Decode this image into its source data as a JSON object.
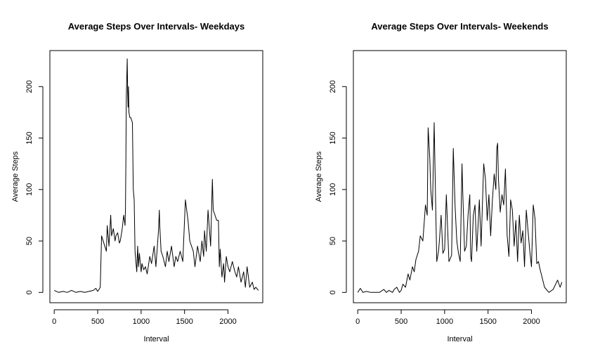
{
  "chart_data": [
    {
      "type": "line",
      "title": "Average Steps Over Intervals- Weekdays",
      "xlabel": "Interval",
      "ylabel": "Average Steps",
      "xlim": [
        -50,
        2400
      ],
      "ylim": [
        -10,
        235
      ],
      "xticks": [
        0,
        500,
        1000,
        1500,
        2000
      ],
      "yticks": [
        0,
        50,
        100,
        150,
        200
      ],
      "series": [
        {
          "x": [
            0,
            50,
            100,
            150,
            200,
            250,
            300,
            350,
            400,
            450,
            480,
            500,
            515,
            530,
            545,
            600,
            610,
            630,
            650,
            660,
            680,
            700,
            710,
            730,
            750,
            760,
            780,
            800,
            815,
            820,
            825,
            830,
            835,
            840,
            845,
            850,
            855,
            860,
            870,
            880,
            900,
            910,
            920,
            930,
            940,
            950,
            960,
            970,
            980,
            1000,
            1010,
            1030,
            1050,
            1070,
            1100,
            1120,
            1150,
            1170,
            1200,
            1210,
            1215,
            1230,
            1250,
            1280,
            1300,
            1320,
            1350,
            1380,
            1400,
            1420,
            1450,
            1480,
            1510,
            1540,
            1550,
            1560,
            1600,
            1620,
            1650,
            1680,
            1700,
            1720,
            1730,
            1750,
            1770,
            1800,
            1820,
            1830,
            1850,
            1870,
            1890,
            1900,
            1910,
            1930,
            1950,
            1960,
            1980,
            2000,
            2020,
            2050,
            2080,
            2100,
            2120,
            2150,
            2180,
            2200,
            2220,
            2250,
            2280,
            2300,
            2320,
            2350
          ],
          "y": [
            2,
            0,
            1,
            0,
            2,
            0,
            1,
            0,
            1,
            2,
            4,
            1,
            3,
            5,
            55,
            40,
            65,
            45,
            75,
            55,
            62,
            50,
            55,
            58,
            48,
            50,
            60,
            75,
            65,
            82,
            130,
            190,
            210,
            227,
            195,
            180,
            200,
            175,
            170,
            170,
            165,
            100,
            90,
            40,
            30,
            20,
            45,
            25,
            38,
            20,
            28,
            22,
            25,
            18,
            35,
            28,
            45,
            25,
            60,
            80,
            65,
            40,
            35,
            25,
            40,
            30,
            45,
            25,
            35,
            30,
            40,
            30,
            90,
            70,
            60,
            50,
            40,
            25,
            45,
            30,
            50,
            35,
            60,
            40,
            80,
            45,
            110,
            80,
            75,
            70,
            70,
            25,
            42,
            15,
            28,
            10,
            35,
            25,
            20,
            30,
            20,
            15,
            25,
            10,
            20,
            5,
            25,
            5,
            10,
            3,
            5,
            2
          ]
        }
      ]
    },
    {
      "type": "line",
      "title": "Average Steps Over Intervals- Weekends",
      "xlabel": "Interval",
      "ylabel": "Average Steps",
      "xlim": [
        -50,
        2400
      ],
      "ylim": [
        -10,
        235
      ],
      "xticks": [
        0,
        500,
        1000,
        1500,
        2000
      ],
      "yticks": [
        0,
        50,
        100,
        150,
        200
      ],
      "series": [
        {
          "x": [
            0,
            30,
            60,
            100,
            150,
            200,
            250,
            300,
            330,
            360,
            400,
            420,
            450,
            480,
            500,
            520,
            550,
            580,
            600,
            630,
            650,
            670,
            700,
            720,
            750,
            780,
            800,
            810,
            830,
            840,
            860,
            880,
            900,
            910,
            930,
            940,
            960,
            980,
            1000,
            1020,
            1050,
            1080,
            1100,
            1120,
            1140,
            1160,
            1180,
            1200,
            1210,
            1230,
            1250,
            1270,
            1290,
            1300,
            1310,
            1330,
            1350,
            1370,
            1400,
            1420,
            1450,
            1470,
            1490,
            1510,
            1530,
            1550,
            1570,
            1590,
            1600,
            1610,
            1620,
            1640,
            1660,
            1680,
            1700,
            1720,
            1740,
            1760,
            1780,
            1800,
            1820,
            1840,
            1860,
            1880,
            1900,
            1920,
            1940,
            1960,
            1980,
            2000,
            2020,
            2040,
            2060,
            2080,
            2100,
            2150,
            2200,
            2250,
            2300,
            2330,
            2350
          ],
          "y": [
            0,
            4,
            0,
            1,
            0,
            0,
            0,
            3,
            0,
            2,
            0,
            3,
            5,
            0,
            2,
            8,
            5,
            18,
            12,
            25,
            20,
            32,
            40,
            55,
            50,
            85,
            75,
            160,
            130,
            100,
            80,
            165,
            72,
            30,
            40,
            50,
            75,
            38,
            42,
            95,
            30,
            36,
            140,
            85,
            50,
            38,
            30,
            125,
            95,
            40,
            45,
            75,
            95,
            35,
            30,
            75,
            85,
            40,
            90,
            45,
            125,
            110,
            70,
            95,
            55,
            90,
            115,
            100,
            140,
            145,
            110,
            78,
            95,
            85,
            120,
            55,
            35,
            90,
            80,
            45,
            70,
            30,
            75,
            48,
            60,
            25,
            80,
            60,
            40,
            25,
            85,
            72,
            28,
            30,
            22,
            5,
            0,
            3,
            12,
            5,
            10
          ]
        }
      ]
    }
  ]
}
